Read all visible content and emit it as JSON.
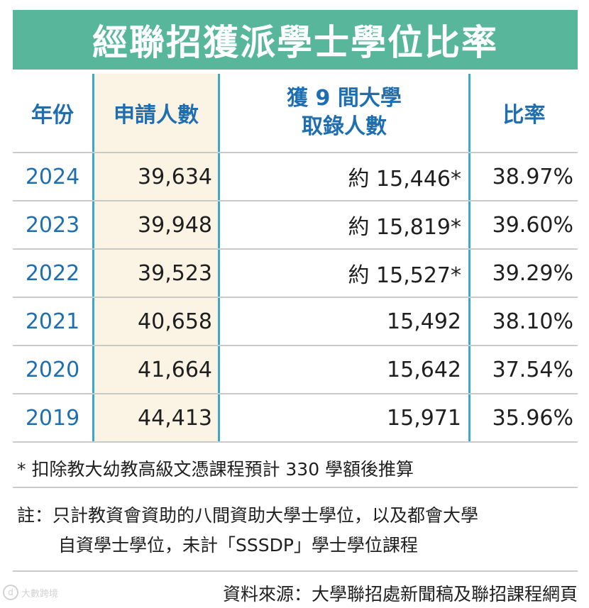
{
  "title": "經聯招獲派學士學位比率",
  "headers": {
    "year": "年份",
    "applicants": "申請人數",
    "admitted_line1": "獲 9 間大學",
    "admitted_line2": "取錄人數",
    "rate": "比率"
  },
  "rows": [
    {
      "year": "2024",
      "applicants": "39,634",
      "admitted": "約 15,446*",
      "rate": "38.97%"
    },
    {
      "year": "2023",
      "applicants": "39,948",
      "admitted": "約 15,819*",
      "rate": "39.60%"
    },
    {
      "year": "2022",
      "applicants": "39,523",
      "admitted": "約 15,527*",
      "rate": "39.29%"
    },
    {
      "year": "2021",
      "applicants": "40,658",
      "admitted": "15,492",
      "rate": "38.10%"
    },
    {
      "year": "2020",
      "applicants": "41,664",
      "admitted": "15,642",
      "rate": "37.54%"
    },
    {
      "year": "2019",
      "applicants": "44,413",
      "admitted": "15,971",
      "rate": "35.96%"
    }
  ],
  "notes": {
    "star_note": "* 扣除教大幼教高級文憑課程預計 330 學額後推算",
    "remark_line1": "註：只計教資會資助的八間資助大學士學位，以及都會大學",
    "remark_line2": "自資學士學位，未計「SSSDP」學士學位課程",
    "source": "資料來源：大學聯招處新聞稿及聯招課程網頁"
  },
  "watermark": {
    "text": "大數跨境"
  },
  "colors": {
    "title_bg": "#58b79a",
    "header_text": "#1f6fb0",
    "divider": "#3fa7c8",
    "applicants_bg": "#fbf3e3"
  }
}
